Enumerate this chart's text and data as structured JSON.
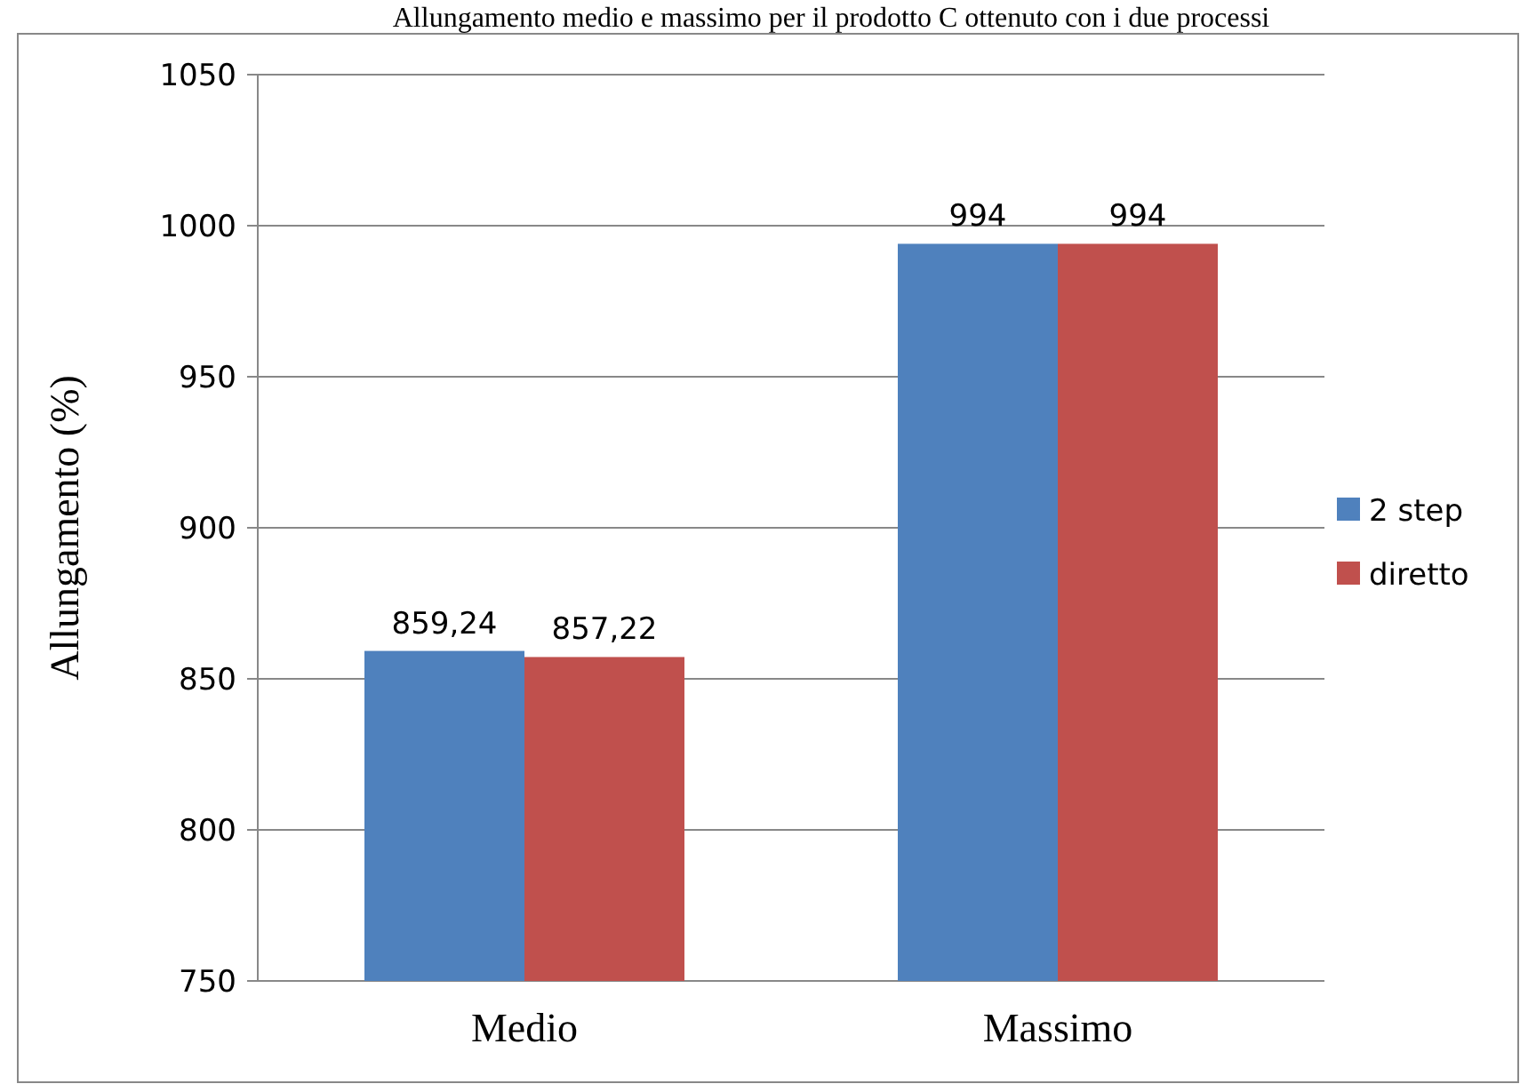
{
  "chart_data": {
    "type": "bar",
    "title": "Allungamento medio e massimo per il prodotto C ottenuto con i due processi",
    "ylabel": "Allungamento (%)",
    "categories": [
      "Medio",
      "Massimo"
    ],
    "series": [
      {
        "name": "2 step",
        "color": "#4f81bd",
        "values": [
          859.24,
          994
        ],
        "value_labels": [
          "859,24",
          "994"
        ]
      },
      {
        "name": "diretto",
        "color": "#c0504d",
        "values": [
          857.22,
          994
        ],
        "value_labels": [
          "857,22",
          "994"
        ]
      }
    ],
    "ylim": [
      750,
      1050
    ],
    "yticks": [
      750,
      800,
      850,
      900,
      950,
      1000,
      1050
    ],
    "grid": "y",
    "legend": "right"
  }
}
